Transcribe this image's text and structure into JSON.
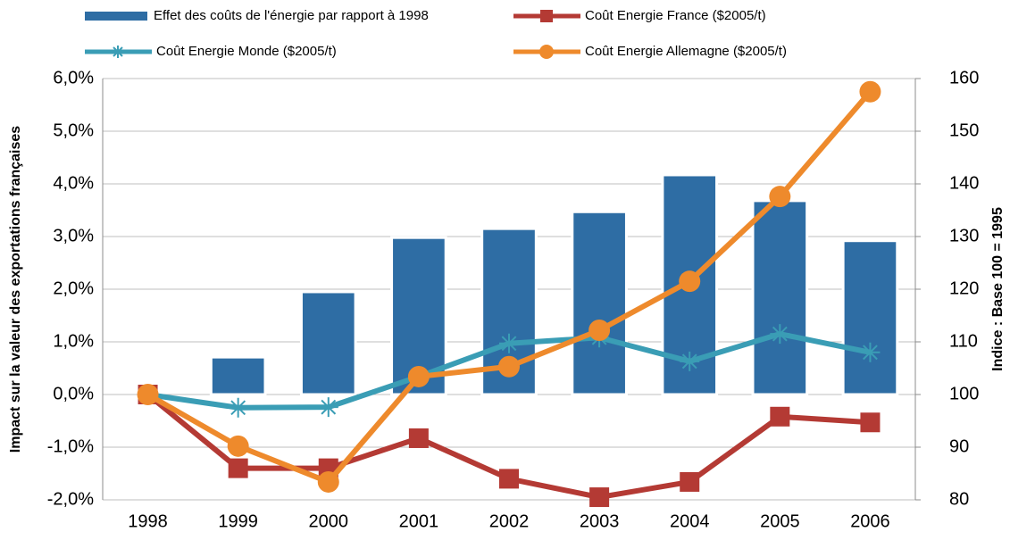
{
  "chart_data": {
    "type": "bar-line",
    "y_label": "Impact sur la valeur des exportations françaises",
    "y2_label": "Indice : Base 100 = 1995",
    "categories": [
      "1998",
      "1999",
      "2000",
      "2001",
      "2002",
      "2003",
      "2004",
      "2005",
      "2006"
    ],
    "ylim": [
      -2,
      6
    ],
    "yticks": [
      {
        "value": -2,
        "label": "-2,0%"
      },
      {
        "value": -1,
        "label": "-1,0%"
      },
      {
        "value": 0,
        "label": "0,0%"
      },
      {
        "value": 1,
        "label": "1,0%"
      },
      {
        "value": 2,
        "label": "2,0%"
      },
      {
        "value": 3,
        "label": "3,0%"
      },
      {
        "value": 4,
        "label": "4,0%"
      },
      {
        "value": 5,
        "label": "5,0%"
      },
      {
        "value": 6,
        "label": "6,0%"
      }
    ],
    "y2lim": [
      80,
      160
    ],
    "y2ticks": [
      80,
      90,
      100,
      110,
      120,
      130,
      140,
      150,
      160
    ],
    "grid": true,
    "series": [
      {
        "name": "Effet des coûts de l'énergie par rapport à 1998",
        "type": "bar",
        "color": "#2e6da4",
        "values": [
          0,
          0.71,
          1.95,
          2.98,
          3.15,
          3.47,
          4.17,
          3.68,
          2.92
        ]
      },
      {
        "name": "Coût Energie France ($2005/t)",
        "type": "line",
        "axis": "y2",
        "marker": "square",
        "color": "#b43a34",
        "values": [
          100,
          86,
          86,
          91.7,
          84,
          80.5,
          83.4,
          95.8,
          94.7
        ]
      },
      {
        "name": "Coût Energie Monde ($2005/t)",
        "type": "line",
        "axis": "y2",
        "marker": "star",
        "color": "#3a9db5",
        "values": [
          100,
          97.5,
          97.6,
          103.4,
          109.7,
          110.8,
          106.3,
          111.5,
          108
        ]
      },
      {
        "name": "Coût Energie Allemagne ($2005/t)",
        "type": "line",
        "axis": "y2",
        "marker": "circle",
        "color": "#ee8a2c",
        "values": [
          100,
          90.2,
          83.4,
          103.4,
          105.3,
          112.2,
          121.5,
          137.6,
          157.5
        ]
      }
    ]
  }
}
